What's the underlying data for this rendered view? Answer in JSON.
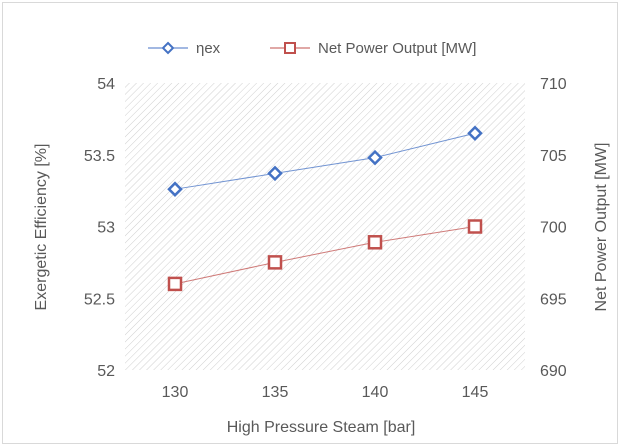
{
  "chart_data": {
    "type": "line",
    "title": "",
    "xlabel": "High Pressure Steam [bar]",
    "ylabel": "Exergetic Efficiency [%]",
    "y2label": "Net Power Output [MW]",
    "categories": [
      "130",
      "135",
      "140",
      "145"
    ],
    "ylim": [
      52,
      54
    ],
    "yticks": [
      "52",
      "52.5",
      "53",
      "53.5",
      "54"
    ],
    "y2lim": [
      690,
      710
    ],
    "y2ticks": [
      "690",
      "695",
      "700",
      "705",
      "710"
    ],
    "grid": false,
    "legend": "top",
    "series": [
      {
        "name": "ηex",
        "axis": "left",
        "color": "#4472c4",
        "marker": "diamond",
        "values": [
          53.26,
          53.37,
          53.48,
          53.65
        ]
      },
      {
        "name": "Net Power Output [MW]",
        "axis": "right",
        "color": "#c0504d",
        "marker": "square",
        "values": [
          696.0,
          697.5,
          698.9,
          700.0
        ]
      }
    ]
  }
}
